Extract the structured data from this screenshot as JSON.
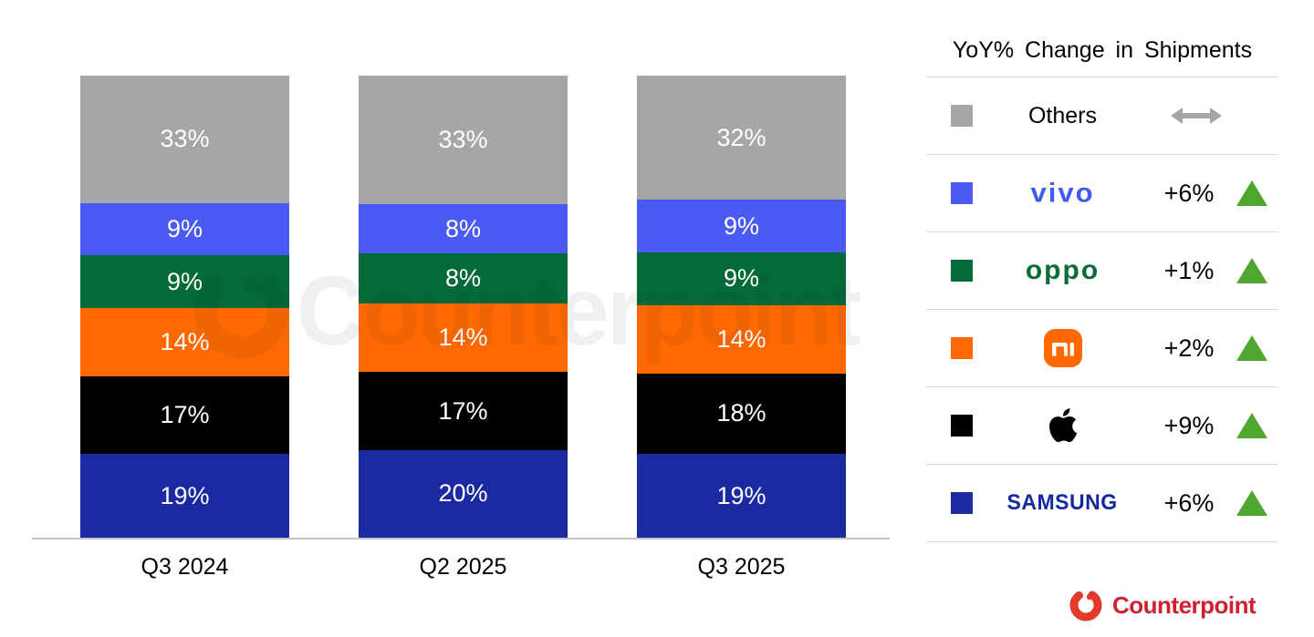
{
  "chart_data": {
    "type": "stacked-bar",
    "title": "",
    "categories": [
      "Q3 2024",
      "Q2 2025",
      "Q3 2025"
    ],
    "stack_order": "top-to-bottom",
    "value_suffix": "%",
    "unit": "percent share of shipments",
    "series": [
      {
        "name": "Others",
        "color": "#A6A6A6",
        "values": [
          33,
          33,
          32
        ]
      },
      {
        "name": "vivo",
        "color": "#4A5AF2",
        "values": [
          9,
          8,
          9
        ]
      },
      {
        "name": "OPPO",
        "color": "#046A38",
        "values": [
          9,
          8,
          9
        ]
      },
      {
        "name": "Xiaomi",
        "color": "#FF6900",
        "values": [
          14,
          14,
          14
        ]
      },
      {
        "name": "Apple",
        "color": "#000000",
        "values": [
          17,
          17,
          18
        ]
      },
      {
        "name": "Samsung",
        "color": "#1B2AA0",
        "values": [
          19,
          20,
          19
        ]
      }
    ]
  },
  "legend": {
    "title": "YoY% Change in Shipments",
    "up_color": "#4EA72E",
    "flat_color": "#A6A6A6",
    "rows": [
      {
        "brand": "Others",
        "wordmark": "Others",
        "change": "",
        "direction": "flat"
      },
      {
        "brand": "vivo",
        "wordmark": "vivo",
        "change": "+6%",
        "direction": "up"
      },
      {
        "brand": "OPPO",
        "wordmark": "oppo",
        "change": "+1%",
        "direction": "up"
      },
      {
        "brand": "Xiaomi",
        "wordmark": "mi",
        "change": "+2%",
        "direction": "up"
      },
      {
        "brand": "Apple",
        "wordmark": "apple",
        "change": "+9%",
        "direction": "up"
      },
      {
        "brand": "Samsung",
        "wordmark": "SAMSUNG",
        "change": "+6%",
        "direction": "up"
      }
    ]
  },
  "watermark": {
    "text": "Counterpoint"
  },
  "footer": {
    "logo_text": "Counterpoint",
    "logo_color": "#CE2030"
  }
}
